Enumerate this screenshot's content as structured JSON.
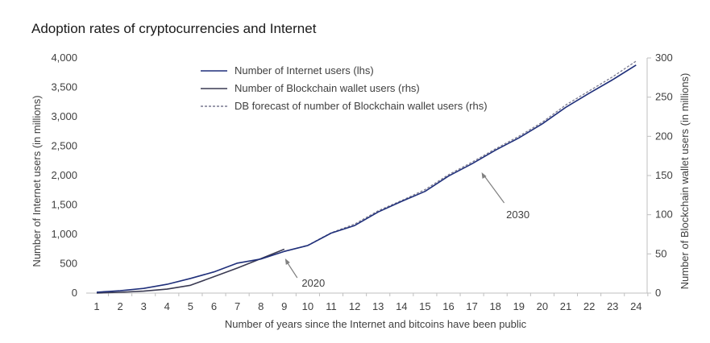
{
  "chart_data": {
    "type": "line",
    "title": "Adoption rates of cryptocurrencies and Internet",
    "xlabel": "Number of years since the Internet and bitcoins have been public",
    "ylabel_left": "Number of Internet users (in millions)",
    "ylabel_right": "Number of Blockchain wallet users (in millions)",
    "x": [
      1,
      2,
      3,
      4,
      5,
      6,
      7,
      8,
      9,
      10,
      11,
      12,
      13,
      14,
      15,
      16,
      17,
      18,
      19,
      20,
      21,
      22,
      23,
      24
    ],
    "ylim_left": [
      0,
      4000
    ],
    "ylim_right": [
      0,
      300
    ],
    "yticks_left": [
      "0",
      "500",
      "1,000",
      "1,500",
      "2,000",
      "2,500",
      "3,000",
      "3,500",
      "4,000"
    ],
    "yticks_right": [
      "0",
      "50",
      "100",
      "150",
      "200",
      "250",
      "300"
    ],
    "legend_position": "top-center",
    "series": [
      {
        "name": "Number of Internet users (lhs)",
        "axis": "left",
        "color": "#1f2f7a",
        "style": "solid",
        "x": [
          1,
          2,
          3,
          4,
          5,
          6,
          7,
          8,
          9,
          10,
          11,
          12,
          13,
          14,
          15,
          16,
          17,
          18,
          19,
          20,
          21,
          22,
          23,
          24
        ],
        "values": [
          15,
          40,
          80,
          150,
          250,
          360,
          510,
          580,
          710,
          810,
          1020,
          1150,
          1380,
          1560,
          1730,
          1990,
          2200,
          2430,
          2640,
          2880,
          3160,
          3400,
          3630,
          3880
        ]
      },
      {
        "name": "Number of Blockchain wallet users (rhs)",
        "axis": "right",
        "color": "#3a3a52",
        "style": "solid",
        "x": [
          1,
          2,
          3,
          4,
          5,
          6,
          7,
          8,
          9
        ],
        "values": [
          0.1,
          1,
          2.5,
          5,
          10,
          21,
          32,
          44,
          56
        ]
      },
      {
        "name": "DB forecast of number of Blockchain wallet users (rhs)",
        "axis": "right",
        "color": "#7a7a90",
        "style": "dashed",
        "x": [
          9,
          10,
          11,
          12,
          13,
          14,
          15,
          16,
          17,
          18,
          19,
          20,
          21,
          22,
          23,
          24
        ],
        "values": [
          53,
          61,
          77,
          88,
          105,
          118,
          132,
          151,
          167,
          184,
          200,
          218,
          240,
          258,
          276,
          296
        ]
      }
    ],
    "annotations": [
      {
        "text": "2020",
        "x": 9
      },
      {
        "text": "2030",
        "x": 17
      }
    ]
  }
}
